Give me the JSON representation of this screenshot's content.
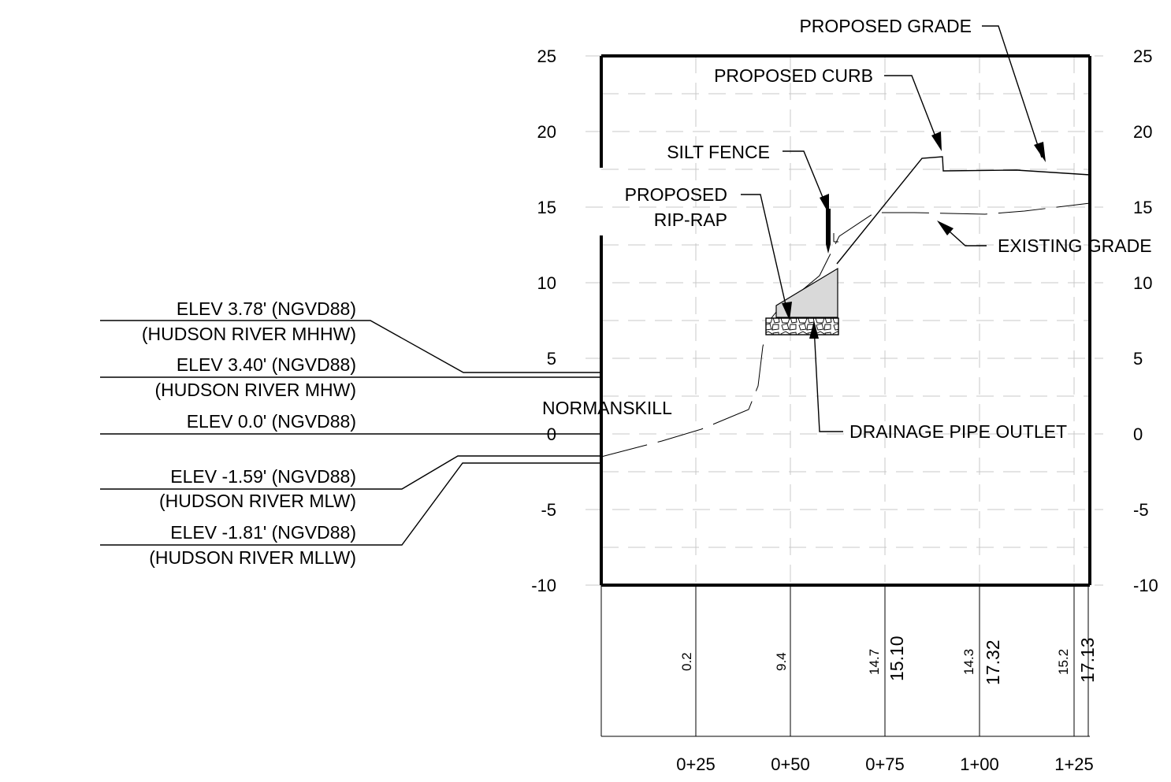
{
  "section": {
    "y_axis_ticks": [
      "25",
      "20",
      "15",
      "10",
      "5",
      "0",
      "-5",
      "-10"
    ],
    "y_axis_values": [
      25,
      20,
      15,
      10,
      5,
      0,
      -5,
      -10
    ],
    "stations": [
      "0+25",
      "0+50",
      "0+75",
      "1+00",
      "1+25"
    ],
    "existing_elevations": [
      "0.2",
      "9.4",
      "14.7",
      "14.3",
      "15.2"
    ],
    "proposed_elevations": [
      "15.10",
      "17.32",
      "17.13"
    ]
  },
  "callouts": {
    "proposed_grade": "PROPOSED GRADE",
    "proposed_curb": "PROPOSED CURB",
    "silt_fence": "SILT FENCE",
    "rip_rap_line1": "PROPOSED",
    "rip_rap_line2": "RIP-RAP",
    "existing_grade": "EXISTING GRADE",
    "drainage_outlet": "DRAINAGE PIPE OUTLET",
    "normanskill": "NORMANSKILL"
  },
  "water_levels": [
    {
      "elev": "ELEV 3.78' (NGVD88)",
      "desc": "(HUDSON RIVER MHHW)"
    },
    {
      "elev": "ELEV 3.40' (NGVD88)",
      "desc": "(HUDSON RIVER MHW)"
    },
    {
      "elev": "ELEV 0.0' (NGVD88)",
      "desc": ""
    },
    {
      "elev": "ELEV -1.59' (NGVD88)",
      "desc": "(HUDSON RIVER MLW)"
    },
    {
      "elev": "ELEV -1.81' (NGVD88)",
      "desc": "(HUDSON RIVER MLLW)"
    }
  ],
  "colors": {
    "line": "#000000",
    "grid": "#c8c8c8",
    "riprap_fill": "#d9d9d9"
  }
}
